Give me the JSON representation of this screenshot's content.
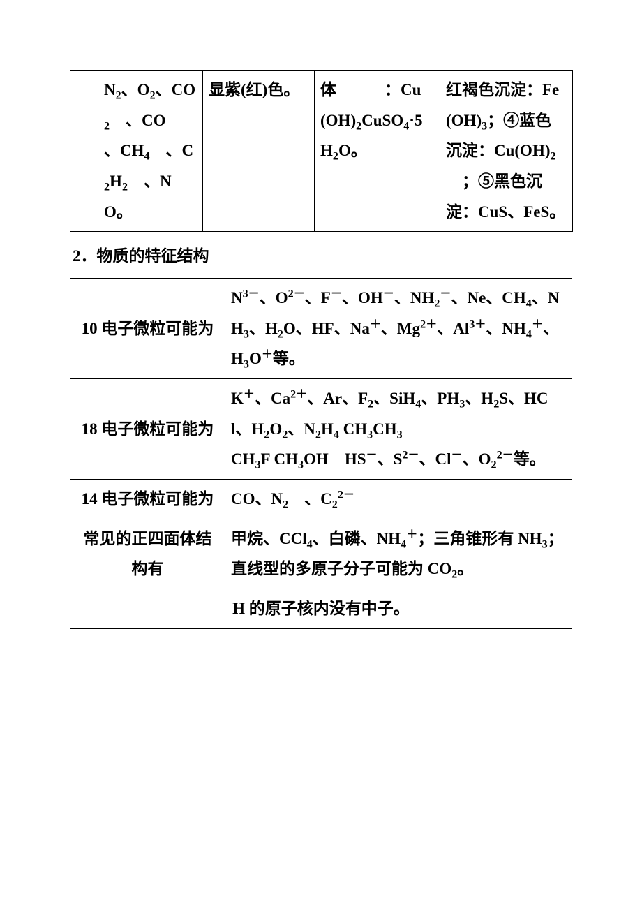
{
  "top_table": {
    "row": {
      "c1": "N<sub>2</sub>、O<sub>2</sub>、CO<sub>2</sub>　、CO　、CH<sub>4</sub>　、C<sub>2</sub>H<sub>2</sub>　、NO。",
      "c2": "显紫(红)色。",
      "c3": "体　　　：Cu(OH)<sub>2</sub>CuSO<sub>4</sub>·5H<sub>2</sub>O。",
      "c4": "红褐色沉淀：Fe(OH)<sub>3</sub>；<span class=\"circled\">④</span>蓝色沉淀：Cu(OH)<sub>2</sub>　；<span class=\"circled\">⑤</span>黑色沉淀：CuS、FeS。"
    }
  },
  "heading": "2．物质的特征结构",
  "struct_table": {
    "rows": [
      {
        "label": "10 电子微粒可能为",
        "content": "N<sup>3－</sup>、O<sup>2－</sup>、F<sup>－</sup>、OH<sup>－</sup>、NH<sub>2</sub><sup>－</sup>、Ne、CH<sub>4</sub>、NH<sub>3</sub>、H<sub>2</sub>O、HF、Na<sup>＋</sup>、Mg<sup>2＋</sup>、Al<sup>3＋</sup>、NH<sub>4</sub><sup>＋</sup>、H<sub>3</sub>O<sup>＋</sup>等。"
      },
      {
        "label": "18 电子微粒可能为",
        "content": "K<sup>＋</sup>、Ca<sup>2＋</sup>、Ar、F<sub>2</sub>、SiH<sub>4</sub>、PH<sub>3</sub>、H<sub>2</sub>S、HCl、H<sub>2</sub>O<sub>2</sub>、N<sub>2</sub>H<sub>4</sub> CH<sub>3</sub>CH<sub>3</sub><br>CH<sub>3</sub>F CH<sub>3</sub>OH　HS<sup>－</sup>、S<sup>2－</sup>、Cl<sup>－</sup>、O<sub>2</sub><sup>2－</sup>等。"
      },
      {
        "label": "14 电子微粒可能为",
        "content": "CO、N<sub>2</sub>　、C<sub>2</sub><sup>2－</sup>"
      },
      {
        "label": "常见的正四面体结构有",
        "content": "甲烷、CCl<sub>4</sub>、白磷、NH<sub>4</sub><sup>＋</sup>；三角锥形有 NH<sub>3</sub>；直线型的多原子分子可能为 CO<sub>2</sub>。"
      }
    ],
    "last_row": "H 的原子核内没有中子。"
  },
  "style": {
    "font_size_pt": 17,
    "font_weight": "bold",
    "border_color": "#000000",
    "background_color": "#ffffff",
    "text_color": "#000000",
    "line_height": 1.9
  }
}
